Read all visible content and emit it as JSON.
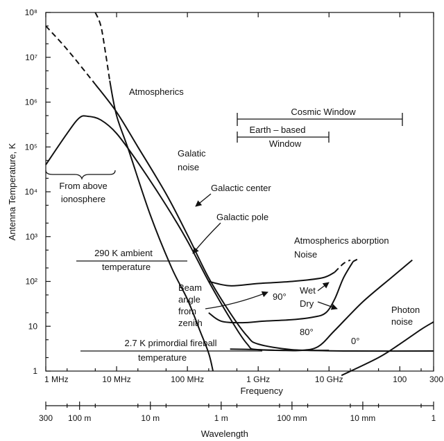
{
  "chart_data": {
    "type": "line",
    "title": "",
    "xlabel": "Frequency",
    "ylabel": "Antenna Temperature, K",
    "x_scale": "log",
    "y_scale": "log",
    "xlim_hz": [
      1000000,
      300000000000
    ],
    "ylim_k": [
      1,
      100000000
    ],
    "x_ticks": [
      {
        "label": "1 MHz",
        "hz": 1000000
      },
      {
        "label": "10 MHz",
        "hz": 10000000
      },
      {
        "label": "100 MHz",
        "hz": 100000000
      },
      {
        "label": "1 GHz",
        "hz": 1000000000
      },
      {
        "label": "10 GHz",
        "hz": 10000000000
      },
      {
        "label": "100",
        "hz": 100000000000
      },
      {
        "label": "300",
        "hz": 300000000000
      }
    ],
    "y_ticks": [
      {
        "label": "1",
        "k": 1
      },
      {
        "label": "10",
        "k": 10
      },
      {
        "label": "10²",
        "k": 100
      },
      {
        "label": "10³",
        "k": 1000
      },
      {
        "label": "10⁴",
        "k": 10000
      },
      {
        "label": "10⁵",
        "k": 100000
      },
      {
        "label": "10⁶",
        "k": 1000000
      },
      {
        "label": "10⁷",
        "k": 10000000
      },
      {
        "label": "10⁸",
        "k": 100000000
      }
    ],
    "wavelength_axis": {
      "label": "Wavelength",
      "ticks": [
        {
          "label": "300",
          "hz": 1000000
        },
        {
          "label": "100 m",
          "hz": 3000000
        },
        {
          "label": "10 m",
          "hz": 30000000
        },
        {
          "label": "1 m",
          "hz": 300000000
        },
        {
          "label": "100 mm",
          "hz": 3000000000
        },
        {
          "label": "10 mm",
          "hz": 30000000000
        },
        {
          "label": "1",
          "hz": 300000000000
        }
      ]
    },
    "series": [
      {
        "name": "Atmospherics",
        "dashed_upper": true,
        "points": [
          [
            5000000,
            100000000
          ],
          [
            6000000,
            50000000
          ],
          [
            7000000,
            12000000
          ],
          [
            8000000,
            3000000
          ],
          [
            10000000,
            500000
          ],
          [
            15000000,
            80000
          ],
          [
            30000000,
            3000
          ],
          [
            60000000,
            200
          ],
          [
            100000000,
            40
          ],
          [
            150000000,
            8
          ],
          [
            200000000,
            2.5
          ],
          [
            230000000,
            1
          ]
        ]
      },
      {
        "name": "Galatic noise",
        "dashed_upper": true,
        "points": [
          [
            1000000,
            50000000
          ],
          [
            2000000,
            15000000
          ],
          [
            5000000,
            2500000
          ],
          [
            10000000,
            600000
          ],
          [
            20000000,
            100000
          ],
          [
            50000000,
            9000
          ],
          [
            100000000,
            1100
          ],
          [
            200000000,
            120
          ],
          [
            400000000,
            20
          ],
          [
            700000000,
            6
          ],
          [
            1000000000,
            4
          ],
          [
            3000000000,
            3
          ],
          [
            10000000000,
            2.9
          ]
        ]
      },
      {
        "name": "From above ionosphere",
        "points": [
          [
            1000000,
            40000
          ],
          [
            2000000,
            200000
          ],
          [
            3000000,
            450000
          ],
          [
            4000000,
            480000
          ],
          [
            6000000,
            400000
          ],
          [
            10000000,
            200000
          ],
          [
            20000000,
            45000
          ],
          [
            50000000,
            5000
          ],
          [
            100000000,
            800
          ],
          [
            200000000,
            100
          ],
          [
            400000000,
            15
          ],
          [
            700000000,
            4
          ],
          [
            1000000000,
            3
          ],
          [
            5000000000,
            2.9
          ],
          [
            20000000000,
            2.8
          ],
          [
            300000000000,
            2.8
          ]
        ]
      },
      {
        "name": "Atmospherics aborption Noise 90°",
        "dashed_upper": true,
        "points": [
          [
            200000000,
            100
          ],
          [
            400000000,
            80
          ],
          [
            1000000000,
            90
          ],
          [
            3000000000,
            100
          ],
          [
            8000000000,
            120
          ],
          [
            12000000000,
            160
          ],
          [
            16000000000,
            250
          ],
          [
            20000000000,
            300
          ]
        ]
      },
      {
        "name": "Atmospherics aborption Noise 80°",
        "dashed_upper": true,
        "points": [
          [
            200000000,
            20
          ],
          [
            300000000,
            13
          ],
          [
            600000000,
            12
          ],
          [
            1200000000,
            13
          ],
          [
            3000000000,
            14
          ],
          [
            6000000000,
            16
          ],
          [
            9000000000,
            20
          ],
          [
            12000000000,
            40
          ],
          [
            16000000000,
            120
          ],
          [
            22000000000,
            280
          ],
          [
            25000000000,
            310
          ]
        ]
      },
      {
        "name": "Atmospherics aborption Noise 0°",
        "points": [
          [
            400000000,
            3.1
          ],
          [
            1000000000,
            3
          ],
          [
            2000000000,
            2.9
          ],
          [
            4000000000,
            2.9
          ],
          [
            7000000000,
            3.5
          ],
          [
            12000000000,
            8
          ],
          [
            30000000000,
            35
          ],
          [
            80000000000,
            130
          ],
          [
            150000000000,
            300
          ]
        ]
      },
      {
        "name": "Photon noise",
        "points": [
          [
            15000000000,
            0.8
          ],
          [
            50000000000,
            2
          ],
          [
            100000000000,
            4
          ],
          [
            200000000000,
            8.5
          ],
          [
            300000000000,
            12.5
          ]
        ]
      }
    ],
    "annotations": [
      {
        "text": "Atmospherics"
      },
      {
        "text": "Galatic"
      },
      {
        "text": "noise"
      },
      {
        "text": "Galactic center"
      },
      {
        "text": "Galactic pole"
      },
      {
        "text": "From above"
      },
      {
        "text": "ionosphere"
      },
      {
        "text": "290 K ambient"
      },
      {
        "text": "temperature"
      },
      {
        "text": "2.7 K primordial fireball"
      },
      {
        "text": "temperature"
      },
      {
        "text": "Cosmic Window"
      },
      {
        "text": "Earth – based"
      },
      {
        "text": "Window"
      },
      {
        "text": "Atmospherics aborption"
      },
      {
        "text": "Noise"
      },
      {
        "text": "Beam"
      },
      {
        "text": "angle"
      },
      {
        "text": "from"
      },
      {
        "text": "zenith"
      },
      {
        "text": "90°"
      },
      {
        "text": "80°"
      },
      {
        "text": "0°"
      },
      {
        "text": "Wet"
      },
      {
        "text": "Dry"
      },
      {
        "text": "Photon"
      },
      {
        "text": "noise"
      }
    ],
    "grid": false,
    "legend": "none"
  }
}
